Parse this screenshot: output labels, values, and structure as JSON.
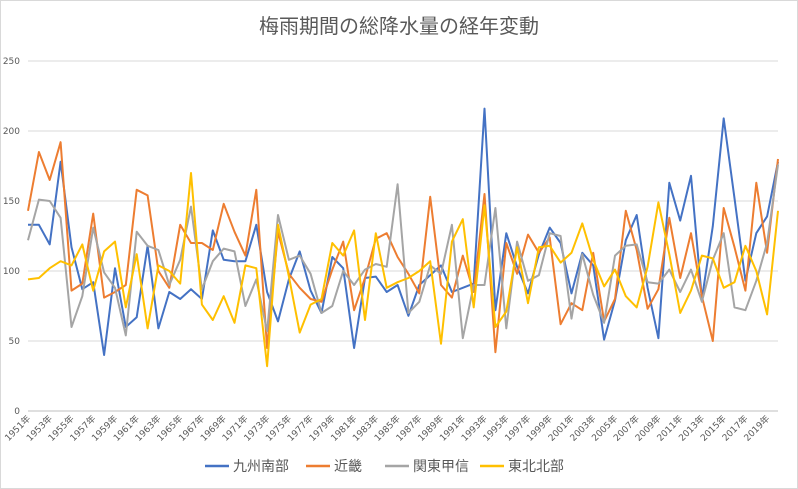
{
  "chart_data": {
    "type": "line",
    "title": "梅雨期間の総降水量の経年変動",
    "xlabel": "",
    "ylabel": "",
    "ylim": [
      0,
      250
    ],
    "yticks": [
      0,
      50,
      100,
      150,
      200,
      250
    ],
    "legend_position": "bottom",
    "gridlines": true,
    "x": [
      1951,
      1952,
      1953,
      1954,
      1955,
      1956,
      1957,
      1958,
      1959,
      1960,
      1961,
      1962,
      1963,
      1964,
      1965,
      1966,
      1967,
      1968,
      1969,
      1970,
      1971,
      1972,
      1973,
      1974,
      1975,
      1976,
      1977,
      1978,
      1979,
      1980,
      1981,
      1982,
      1983,
      1984,
      1985,
      1986,
      1987,
      1988,
      1989,
      1990,
      1991,
      1992,
      1993,
      1994,
      1995,
      1996,
      1997,
      1998,
      1999,
      2000,
      2001,
      2002,
      2003,
      2004,
      2005,
      2006,
      2007,
      2008,
      2009,
      2010,
      2011,
      2012,
      2013,
      2014,
      2015,
      2016,
      2017,
      2018,
      2019,
      2020
    ],
    "x_tick_labels": [
      "1951年",
      "1953年",
      "1955年",
      "1957年",
      "1959年",
      "1961年",
      "1963年",
      "1965年",
      "1967年",
      "1969年",
      "1971年",
      "1973年",
      "1975年",
      "1977年",
      "1979年",
      "1981年",
      "1983年",
      "1985年",
      "1987年",
      "1989年",
      "1991年",
      "1993年",
      "1995年",
      "1997年",
      "1999年",
      "2001年",
      "2003年",
      "2005年",
      "2007年",
      "2009年",
      "2011年",
      "2013年",
      "2015年",
      "2017年",
      "2019年"
    ],
    "series": [
      {
        "name": "九州南部",
        "color": "#4472c4",
        "values": [
          133,
          133,
          119,
          178,
          117,
          87,
          92,
          40,
          102,
          60,
          67,
          118,
          59,
          85,
          80,
          87,
          80,
          129,
          108,
          107,
          107,
          133,
          85,
          64,
          94,
          114,
          86,
          70,
          110,
          102,
          45,
          95,
          96,
          85,
          90,
          68,
          90,
          97,
          104,
          85,
          88,
          91,
          216,
          72,
          127,
          103,
          84,
          112,
          131,
          120,
          84,
          113,
          104,
          51,
          79,
          122,
          140,
          88,
          52,
          163,
          136,
          168,
          80,
          132,
          209,
          152,
          93,
          127,
          139,
          178
        ]
      },
      {
        "name": "近畿",
        "color": "#ed7d31",
        "values": [
          143,
          185,
          165,
          192,
          86,
          91,
          141,
          81,
          85,
          90,
          158,
          154,
          100,
          88,
          133,
          120,
          120,
          115,
          148,
          128,
          111,
          158,
          45,
          128,
          98,
          88,
          80,
          78,
          101,
          121,
          72,
          95,
          123,
          127,
          110,
          98,
          84,
          153,
          90,
          81,
          111,
          85,
          155,
          42,
          120,
          98,
          126,
          113,
          124,
          62,
          77,
          72,
          113,
          64,
          80,
          143,
          115,
          73,
          87,
          138,
          95,
          127,
          82,
          50,
          145,
          117,
          86,
          163,
          113,
          180
        ]
      },
      {
        "name": "関東甲信",
        "color": "#a5a5a5",
        "values": [
          122,
          151,
          150,
          138,
          60,
          82,
          131,
          99,
          88,
          54,
          128,
          118,
          115,
          90,
          108,
          146,
          87,
          107,
          116,
          114,
          75,
          94,
          57,
          140,
          108,
          111,
          98,
          70,
          75,
          100,
          90,
          101,
          105,
          103,
          162,
          70,
          78,
          104,
          98,
          133,
          52,
          90,
          90,
          145,
          59,
          121,
          93,
          97,
          127,
          125,
          66,
          112,
          83,
          63,
          111,
          118,
          119,
          92,
          91,
          101,
          85,
          101,
          78,
          108,
          127,
          74,
          72,
          93,
          120,
          176
        ]
      },
      {
        "name": "東北北部",
        "color": "#ffc000",
        "values": [
          94,
          95,
          102,
          107,
          104,
          119,
          86,
          114,
          121,
          74,
          112,
          59,
          104,
          100,
          91,
          170,
          76,
          65,
          82,
          63,
          104,
          102,
          32,
          133,
          96,
          56,
          76,
          80,
          120,
          111,
          129,
          65,
          127,
          88,
          92,
          95,
          100,
          107,
          48,
          121,
          137,
          74,
          147,
          60,
          71,
          117,
          77,
          117,
          118,
          106,
          113,
          134,
          108,
          89,
          101,
          82,
          74,
          103,
          149,
          112,
          70,
          86,
          111,
          109,
          88,
          92,
          118,
          100,
          69,
          143
        ]
      }
    ]
  }
}
